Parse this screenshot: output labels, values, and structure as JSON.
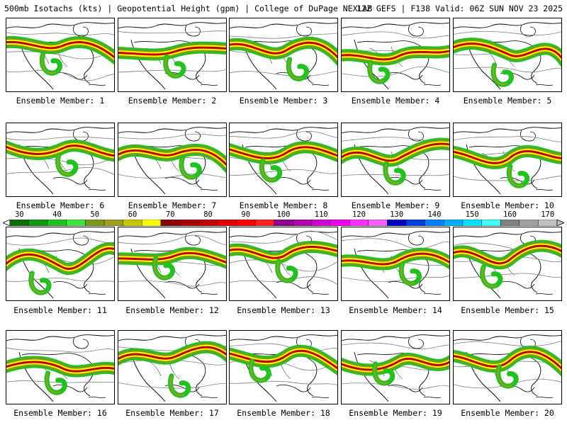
{
  "header": {
    "title_left": "500mb Isotachs (kts) | Geopotential Height (gpm) | College of DuPage NEXLAB",
    "title_right": "12Z GEFS | F138 Valid: 06Z SUN NOV 23 2025"
  },
  "colors": {
    "background": "#ffffff",
    "land": "#ffffff",
    "outline": "#000000",
    "height_contour": "#7f7f7f"
  },
  "members": [
    {
      "label": "Ensemble Member: 1"
    },
    {
      "label": "Ensemble Member: 2"
    },
    {
      "label": "Ensemble Member: 3"
    },
    {
      "label": "Ensemble Member: 4"
    },
    {
      "label": "Ensemble Member: 5"
    },
    {
      "label": "Ensemble Member: 6"
    },
    {
      "label": "Ensemble Member: 7"
    },
    {
      "label": "Ensemble Member: 8"
    },
    {
      "label": "Ensemble Member: 9"
    },
    {
      "label": "Ensemble Member: 10"
    },
    {
      "label": "Ensemble Member: 11"
    },
    {
      "label": "Ensemble Member: 12"
    },
    {
      "label": "Ensemble Member: 13"
    },
    {
      "label": "Ensemble Member: 14"
    },
    {
      "label": "Ensemble Member: 15"
    },
    {
      "label": "Ensemble Member: 16"
    },
    {
      "label": "Ensemble Member: 17"
    },
    {
      "label": "Ensemble Member: 18"
    },
    {
      "label": "Ensemble Member: 19"
    },
    {
      "label": "Ensemble Member: 20"
    }
  ],
  "colorbar": {
    "unit": "kts",
    "ticks": [
      "30",
      "40",
      "50",
      "60",
      "70",
      "80",
      "90",
      "100",
      "110",
      "120",
      "130",
      "140",
      "150",
      "160",
      "170"
    ],
    "bins": [
      {
        "min": 30,
        "color": "#0a6e0a"
      },
      {
        "min": 35,
        "color": "#0c9a0c"
      },
      {
        "min": 40,
        "color": "#1fc21f"
      },
      {
        "min": 45,
        "color": "#3ee63e"
      },
      {
        "min": 50,
        "color": "#7a9a1a"
      },
      {
        "min": 55,
        "color": "#a0a020"
      },
      {
        "min": 60,
        "color": "#c8c800"
      },
      {
        "min": 65,
        "color": "#ffff00"
      },
      {
        "min": 70,
        "color": "#8b0000"
      },
      {
        "min": 75,
        "color": "#a80000"
      },
      {
        "min": 80,
        "color": "#c40000"
      },
      {
        "min": 85,
        "color": "#e00000"
      },
      {
        "min": 90,
        "color": "#ff0000"
      },
      {
        "min": 95,
        "color": "#ff2020"
      },
      {
        "min": 100,
        "color": "#900090"
      },
      {
        "min": 105,
        "color": "#b000b0"
      },
      {
        "min": 110,
        "color": "#d000d0"
      },
      {
        "min": 115,
        "color": "#ee00ee"
      },
      {
        "min": 120,
        "color": "#ff30ff"
      },
      {
        "min": 125,
        "color": "#ff60ff"
      },
      {
        "min": 130,
        "color": "#0000c0"
      },
      {
        "min": 135,
        "color": "#0040e0"
      },
      {
        "min": 140,
        "color": "#0080ff"
      },
      {
        "min": 145,
        "color": "#00b0ff"
      },
      {
        "min": 150,
        "color": "#00e0ff"
      },
      {
        "min": 155,
        "color": "#40ffff"
      },
      {
        "min": 160,
        "color": "#808080"
      },
      {
        "min": 165,
        "color": "#a0a0a0"
      },
      {
        "min": 170,
        "color": "#c0c0c0"
      }
    ]
  }
}
